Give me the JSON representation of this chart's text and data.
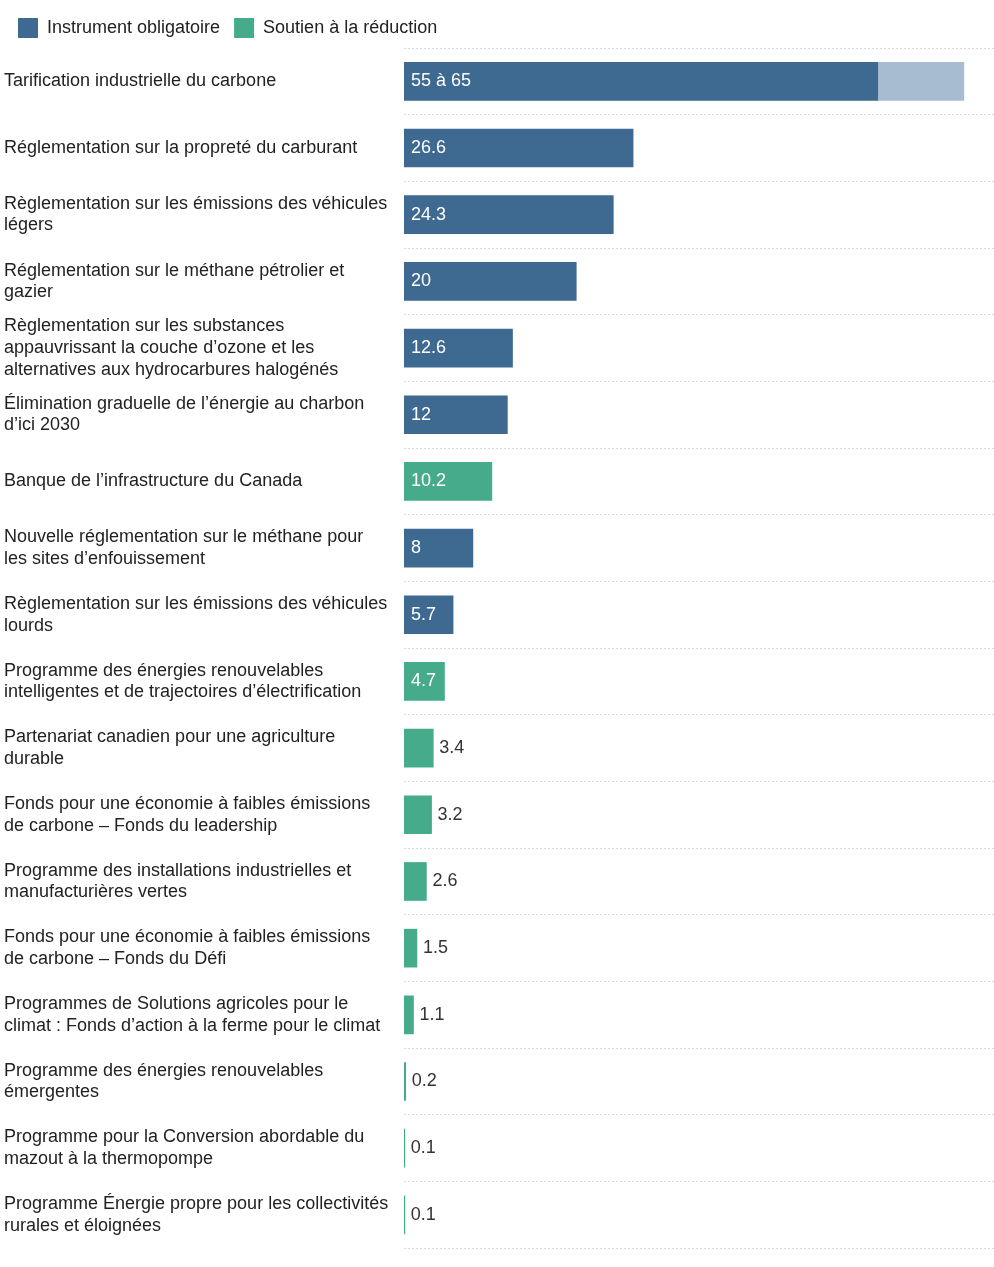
{
  "chart_data": {
    "type": "bar",
    "orientation": "horizontal",
    "stacked": true,
    "legend": "top left",
    "grid": "y",
    "tick_labels": "y",
    "xlim": [
      0,
      68.5
    ],
    "categories": [
      "Tarification industrielle du carbone",
      "Réglementation sur la propreté du carburant",
      "Règlementation sur les émissions des véhicules légers",
      "Réglementation sur le méthane pétrolier et gazier",
      "Règlementation sur les substances appauvrissant la couche d’ozone et les alternatives aux hydrocarbures halogénés",
      "Élimination graduelle de l’énergie au charbon d’ici 2030",
      "Banque de l’infrastructure du Canada",
      "Nouvelle réglementation sur le méthane pour les sites d’enfouissement",
      "Règlementation sur les émissions des véhicules lourds",
      "Programme des énergies renouvelables intelligentes et de trajectoires d’électrification",
      "Partenariat canadien pour une agriculture durable",
      "Fonds pour une économie à faibles émissions de carbone – Fonds du leadership",
      "Programme des installations industrielles et manufacturières vertes",
      "Fonds pour une économie à faibles émissions de carbone – Fonds du Défi",
      "Programmes de Solutions agricoles pour le climat : Fonds d’action à la ferme pour le climat",
      "Programme des énergies renouvelables émergentes",
      "Programme pour la Conversion abordable du mazout à la thermopompe",
      "Programme Énergie propre pour les collectivités rurales et éloignées"
    ],
    "series": [
      {
        "name": "Instrument obligatoire",
        "color": "#3e6990",
        "values": [
          55,
          26.6,
          24.3,
          20,
          12.6,
          12,
          null,
          8,
          5.7,
          null,
          null,
          null,
          null,
          null,
          null,
          null,
          null,
          null
        ],
        "value_labels": [
          "55 à 65",
          "26.6",
          "24.3",
          "20",
          "12.6",
          "12",
          null,
          "8",
          "5.7",
          null,
          null,
          null,
          null,
          null,
          null,
          null,
          null,
          null
        ]
      },
      {
        "color": "#a7bcd0",
        "values": [
          10,
          null,
          null,
          null,
          null,
          null,
          null,
          null,
          null,
          null,
          null,
          null,
          null,
          null,
          null,
          null,
          null,
          null
        ]
      },
      {
        "name": "Soutien à la réduction",
        "color": "#45ab8b",
        "values": [
          null,
          null,
          null,
          null,
          null,
          null,
          10.2,
          null,
          null,
          4.7,
          3.4,
          3.2,
          2.6,
          1.5,
          1.1,
          0.2,
          0.1,
          0.1
        ],
        "value_labels": [
          null,
          null,
          null,
          null,
          null,
          null,
          "10.2",
          null,
          null,
          "4.7",
          "3.4",
          "3.2",
          "2.6",
          "1.5",
          "1.1",
          "0.2",
          "0.1",
          "0.1"
        ]
      }
    ]
  }
}
